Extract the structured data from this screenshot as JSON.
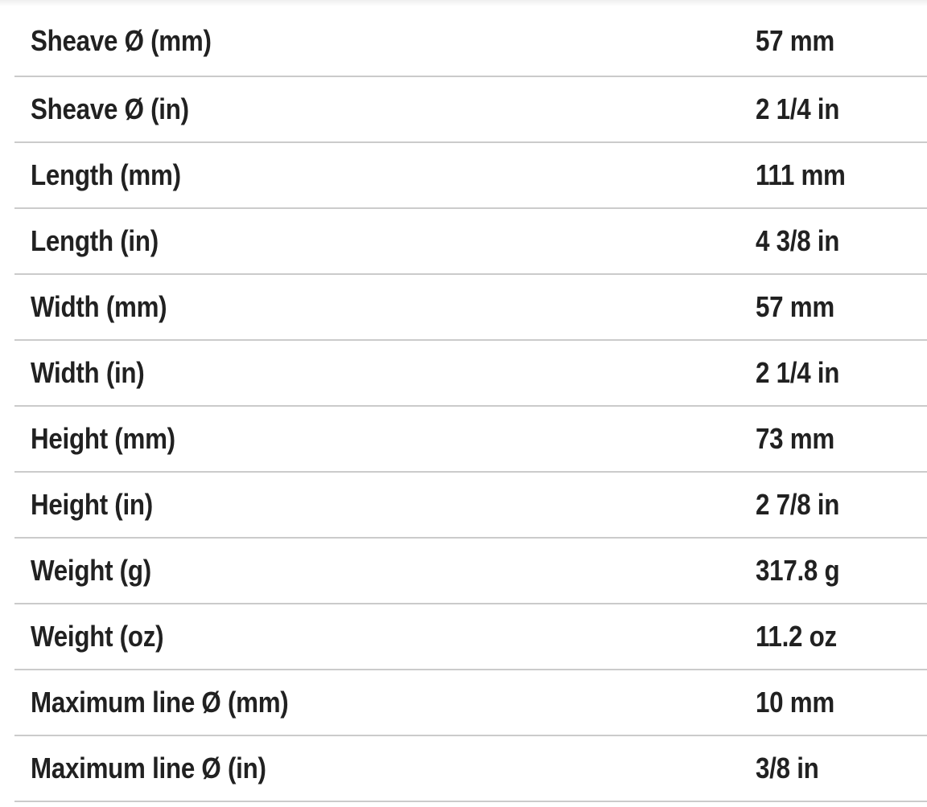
{
  "table": {
    "rows": [
      {
        "label": "Sheave Ø (mm)",
        "value": "57 mm"
      },
      {
        "label": "Sheave Ø (in)",
        "value": "2 1/4 in"
      },
      {
        "label": "Length (mm)",
        "value": "111 mm"
      },
      {
        "label": "Length (in)",
        "value": "4 3/8 in"
      },
      {
        "label": "Width (mm)",
        "value": "57 mm"
      },
      {
        "label": "Width (in)",
        "value": "2 1/4 in"
      },
      {
        "label": "Height (mm)",
        "value": "73 mm"
      },
      {
        "label": "Height (in)",
        "value": "2 7/8 in"
      },
      {
        "label": "Weight (g)",
        "value": "317.8 g"
      },
      {
        "label": "Weight (oz)",
        "value": "11.2 oz"
      },
      {
        "label": "Maximum line Ø (mm)",
        "value": "10 mm"
      },
      {
        "label": "Maximum line Ø (in)",
        "value": "3/8 in"
      }
    ],
    "colors": {
      "text": "#212121",
      "divider": "#cbcbcb",
      "background": "#ffffff"
    }
  }
}
